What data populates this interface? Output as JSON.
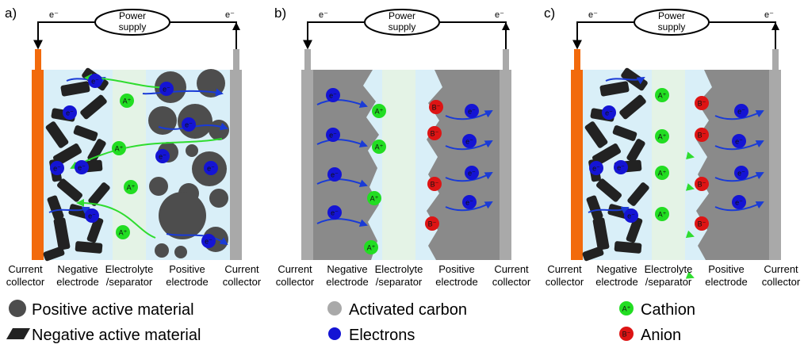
{
  "particles": {
    "electron": "e⁻",
    "cation": "A⁺",
    "anion": "B⁻"
  },
  "panels": [
    {
      "label": "a)",
      "power_supply": [
        "Power",
        "supply"
      ],
      "region_labels": [
        [
          "Current",
          "collector"
        ],
        [
          "Negative",
          "electrode"
        ],
        [
          "Electrolyte",
          "/separator"
        ],
        [
          "Positive",
          "electrode"
        ],
        [
          "Current",
          "collector"
        ]
      ]
    },
    {
      "label": "b)",
      "power_supply": [
        "Power",
        "supply"
      ],
      "region_labels": [
        [
          "Current",
          "collector"
        ],
        [
          "Negative",
          "electrode"
        ],
        [
          "Electrolyte",
          "/separator"
        ],
        [
          "Positive",
          "electrode"
        ],
        [
          "Current",
          "collector"
        ]
      ]
    },
    {
      "label": "c)",
      "power_supply": [
        "Power",
        "supply"
      ],
      "region_labels": [
        [
          "Current",
          "collector"
        ],
        [
          "Negative",
          "electrode"
        ],
        [
          "Electrolyte",
          "/separator"
        ],
        [
          "Positive",
          "electrode"
        ],
        [
          "Current",
          "collector"
        ]
      ]
    }
  ],
  "legend": [
    "Positive active material",
    "Negative active material",
    "Activated carbon",
    "Electrons",
    "Cathion",
    "Anion"
  ]
}
